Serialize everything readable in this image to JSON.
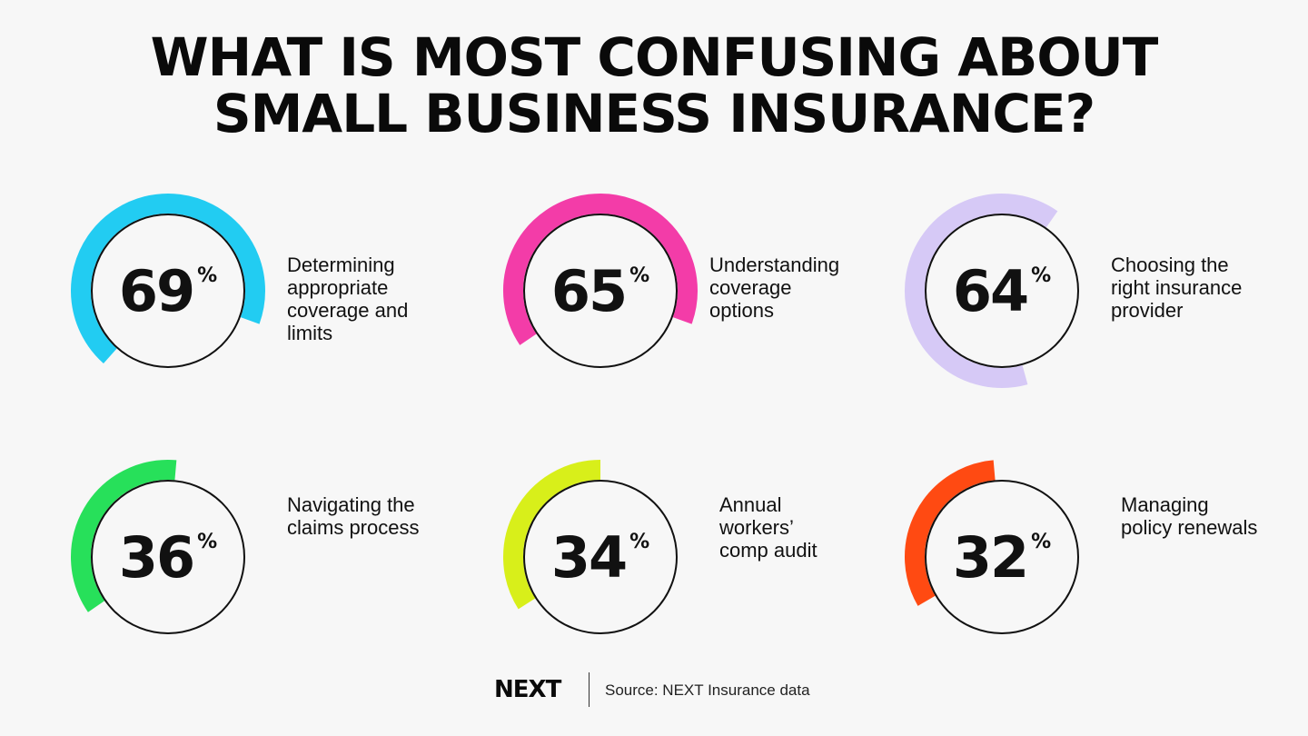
{
  "title_lines": [
    "What is most confusing about",
    "small business insurance?"
  ],
  "chart_data": {
    "type": "donut",
    "items": [
      {
        "value": 69,
        "label_lines": [
          "Determining",
          "appropriate",
          "coverage and",
          "limits"
        ],
        "color": "#22ccf2"
      },
      {
        "value": 65,
        "label_lines": [
          "Understanding",
          "coverage",
          "options"
        ],
        "color": "#f33ca8"
      },
      {
        "value": 64,
        "label_lines": [
          "Choosing the",
          "right insurance",
          "provider"
        ],
        "color": "#d6c9f6"
      },
      {
        "value": 36,
        "label_lines": [
          "Navigating the",
          "claims process"
        ],
        "color": "#27e05a"
      },
      {
        "value": 34,
        "label_lines": [
          "Annual",
          "workers’",
          "comp audit"
        ],
        "color": "#d8ef1a"
      },
      {
        "value": 32,
        "label_lines": [
          "Managing",
          "policy renewals"
        ],
        "color": "#ff4a12"
      }
    ],
    "unit": "%"
  },
  "footer": {
    "logo": "NEXT",
    "source": "Source: NEXT Insurance data"
  }
}
